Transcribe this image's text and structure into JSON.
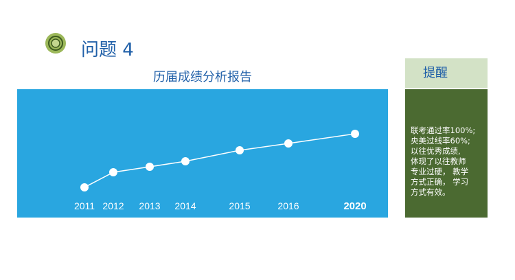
{
  "header": {
    "title": "问题 4"
  },
  "sidebar": {
    "title": "提醒",
    "lines": [
      "联考通过率100%;",
      "央美过线率60%;",
      "以往优秀成绩,",
      "体现了以往教师",
      "专业过硬， 教学",
      "方式正确， 学习",
      "方式有效。"
    ]
  },
  "colors": {
    "chart_bg": "#29a6e0",
    "title": "#1f5fa8",
    "sidebar_header": "#d3e2c6",
    "sidebar_body": "#4b6a31"
  },
  "chart_data": {
    "type": "line",
    "title": "历届成绩分析报告",
    "categories": [
      "2011",
      "2012",
      "2013",
      "2014",
      "2015",
      "2016",
      "2020"
    ],
    "values": [
      17,
      39,
      47,
      55,
      71,
      81,
      95
    ],
    "ylim": [
      0,
      100
    ],
    "grid": false,
    "highlight_category": "2020"
  }
}
